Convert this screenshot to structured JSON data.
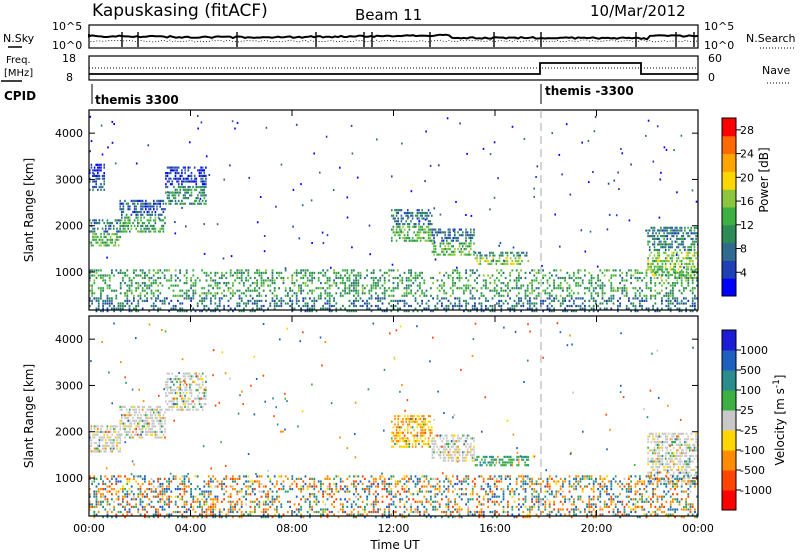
{
  "header": {
    "station": "Kapuskasing (fitACF)",
    "beam": "Beam 11",
    "date": "10/Mar/2012"
  },
  "noise_panel": {
    "left_label": "N.Sky",
    "right_label": "N.Search",
    "left_ticks": [
      "10^5",
      "10^0"
    ],
    "right_ticks": [
      "10^5",
      "10^0"
    ]
  },
  "freq_panel": {
    "left_label_1": "Freq.",
    "left_label_2": "[MHz]",
    "right_label": "Nave",
    "left_ticks": [
      "18",
      "8"
    ],
    "right_ticks": [
      "60",
      "0"
    ]
  },
  "cpid": {
    "label": "CPID",
    "entries": [
      {
        "text": "themis 3300",
        "start_hour": 0
      },
      {
        "text": "themis -3300",
        "start_hour": 18
      }
    ]
  },
  "chart_data": [
    {
      "type": "heatmap",
      "title": "",
      "xlabel": "Time UT",
      "ylabel": "Slant Range [km]",
      "xlim": [
        0,
        24
      ],
      "ylim": [
        180,
        4500
      ],
      "y_ticks": [
        "1000",
        "2000",
        "3000",
        "4000"
      ],
      "colorbar": {
        "label": "Power [dB]",
        "ticks": [
          "28",
          "24",
          "20",
          "16",
          "12",
          "8",
          "4"
        ],
        "range": [
          0,
          30
        ],
        "colors": [
          "#0000ff",
          "#1f3fb5",
          "#2f6b8f",
          "#2e8b57",
          "#3cb043",
          "#8cc63f",
          "#ffd700",
          "#ffa500",
          "#ff6a00",
          "#ff0000"
        ]
      },
      "echo_regions": [
        {
          "t0": 0.0,
          "t1": 1.2,
          "r0": 1600,
          "r1": 2200,
          "level": 10
        },
        {
          "t0": 0.0,
          "t1": 0.6,
          "r0": 2800,
          "r1": 3400,
          "level": 4
        },
        {
          "t0": 1.2,
          "t1": 3.0,
          "r0": 1900,
          "r1": 2600,
          "level": 8
        },
        {
          "t0": 3.0,
          "t1": 4.6,
          "r0": 2500,
          "r1": 3300,
          "level": 6
        },
        {
          "t0": 11.9,
          "t1": 13.5,
          "r0": 1700,
          "r1": 2400,
          "level": 10
        },
        {
          "t0": 13.5,
          "t1": 15.2,
          "r0": 1400,
          "r1": 2000,
          "level": 9
        },
        {
          "t0": 15.2,
          "t1": 17.3,
          "r0": 1200,
          "r1": 1500,
          "level": 12
        },
        {
          "t0": 22.0,
          "t1": 24.0,
          "r0": 900,
          "r1": 2000,
          "level": 11
        }
      ],
      "near_range_clutter": {
        "t0": 0.0,
        "t1": 24.0,
        "r0": 180,
        "r1": 1100
      }
    },
    {
      "type": "heatmap",
      "title": "",
      "xlabel": "Time UT",
      "ylabel": "Slant Range [km]",
      "xlim": [
        0,
        24
      ],
      "ylim": [
        180,
        4500
      ],
      "x_ticks": [
        "00:00",
        "04:00",
        "08:00",
        "12:00",
        "16:00",
        "20:00",
        "00:00"
      ],
      "y_ticks": [
        "1000",
        "2000",
        "3000",
        "4000"
      ],
      "colorbar": {
        "label": "Velocity [m s^-1]",
        "ticks": [
          "1000",
          "500",
          "100",
          "25",
          "-25",
          "-100",
          "-500",
          "-1000"
        ],
        "colors": [
          "#1c1cd6",
          "#1f5fbf",
          "#2a8c8c",
          "#3cb043",
          "#c8c8c8",
          "#ffd700",
          "#ff8c00",
          "#ff4500",
          "#ff0000"
        ]
      },
      "echo_regions": [
        {
          "t0": 0.0,
          "t1": 1.2,
          "r0": 1600,
          "r1": 2200,
          "velocity": 0
        },
        {
          "t0": 1.2,
          "t1": 3.0,
          "r0": 1900,
          "r1": 2600,
          "velocity": 0
        },
        {
          "t0": 3.0,
          "t1": 4.6,
          "r0": 2500,
          "r1": 3300,
          "velocity": 0
        },
        {
          "t0": 11.9,
          "t1": 13.5,
          "r0": 1700,
          "r1": 2400,
          "velocity": -100
        },
        {
          "t0": 13.5,
          "t1": 15.2,
          "r0": 1400,
          "r1": 2000,
          "velocity": 0
        },
        {
          "t0": 15.2,
          "t1": 17.3,
          "r0": 1300,
          "r1": 1500,
          "velocity": 100
        },
        {
          "t0": 22.0,
          "t1": 24.0,
          "r0": 900,
          "r1": 2000,
          "velocity": 0
        }
      ],
      "near_range_clutter": {
        "t0": 0.0,
        "t1": 24.0,
        "r0": 180,
        "r1": 1100
      }
    }
  ]
}
